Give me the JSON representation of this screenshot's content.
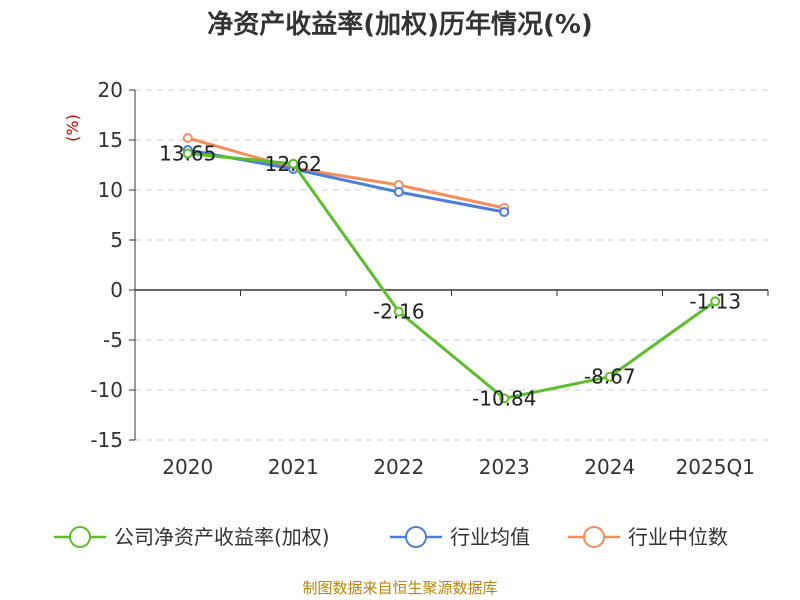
{
  "chart_data": {
    "type": "line",
    "title": "净资产收益率(加权)历年情况(%)",
    "ylabel": "(%)",
    "xlabel": "",
    "categories": [
      "2020",
      "2021",
      "2022",
      "2023",
      "2024",
      "2025Q1"
    ],
    "ylim": [
      -15,
      20
    ],
    "yticks": [
      20,
      15,
      10,
      5,
      0,
      -5,
      -10,
      -15
    ],
    "grid": true,
    "legend_position": "bottom",
    "series": [
      {
        "name": "公司净资产收益率(加权)",
        "color": "#5bbf29",
        "values": [
          13.65,
          12.62,
          -2.16,
          -10.84,
          -8.67,
          -1.13
        ],
        "labels": [
          "13.65",
          "12.62",
          "-2.16",
          "-10.84",
          "-8.67",
          "-1.13"
        ]
      },
      {
        "name": "行业均值",
        "color": "#4a7fd8",
        "values": [
          14.0,
          12.1,
          9.8,
          7.8,
          null,
          null
        ]
      },
      {
        "name": "行业中位数",
        "color": "#f28e5b",
        "values": [
          15.2,
          12.2,
          10.5,
          8.2,
          null,
          null
        ]
      }
    ]
  },
  "source_note": "制图数据来自恒生聚源数据库"
}
